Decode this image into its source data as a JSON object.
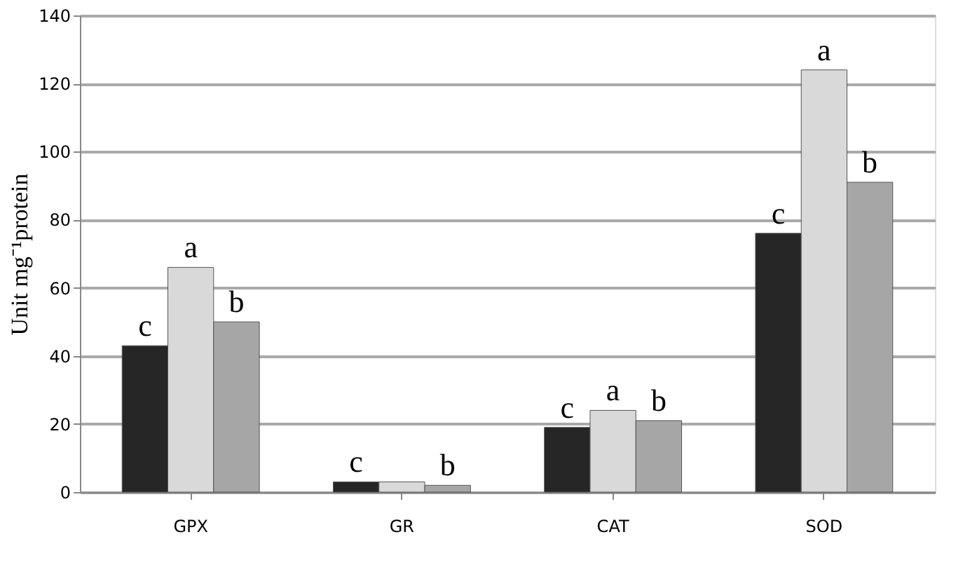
{
  "chart_data": {
    "type": "bar",
    "ylabel": "Unit mg⁻¹protein",
    "categories": [
      "GPX",
      "GR",
      "CAT",
      "SOD"
    ],
    "series": [
      {
        "color": "#262626",
        "values": [
          43,
          3,
          19,
          76
        ],
        "value_labels": [
          "c",
          "c",
          "c",
          "c"
        ]
      },
      {
        "color": "#d9d9d9",
        "values": [
          66,
          3,
          24,
          124
        ],
        "value_labels": [
          "a",
          null,
          "a",
          "a"
        ]
      },
      {
        "color": "#a6a6a6",
        "values": [
          50,
          2,
          21,
          91
        ],
        "value_labels": [
          "b",
          "b",
          "b",
          "b"
        ]
      }
    ],
    "ylim": [
      0,
      140
    ],
    "yticks": [
      0,
      20,
      40,
      60,
      80,
      100,
      120,
      140
    ],
    "grid": "y",
    "legend": false
  }
}
